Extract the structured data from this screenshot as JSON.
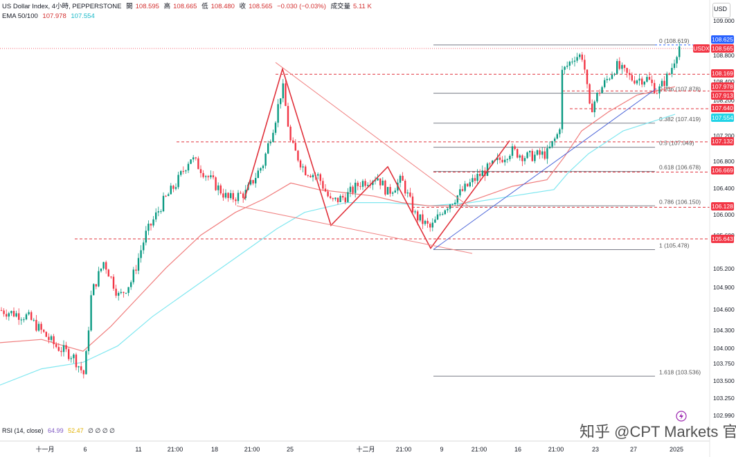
{
  "header": {
    "symbol": "US Dollar Index, 4小時, PEPPERSTONE",
    "open_label": "開",
    "open": "108.595",
    "high_label": "高",
    "high": "108.665",
    "low_label": "低",
    "low": "108.480",
    "close_label": "收",
    "close": "108.565",
    "change": "−0.030 (−0.03%)",
    "volume_label": "成交量",
    "volume": "5.11 K",
    "ema_label": "EMA 50/100",
    "ema50": "107.978",
    "ema100": "107.554"
  },
  "axis": {
    "currency": "USD",
    "y_ticks": [
      "109.000",
      "108.800",
      "108.400",
      "108.200",
      "107.200",
      "106.800",
      "106.400",
      "106.000",
      "105.600",
      "105.200",
      "104.900",
      "104.600",
      "104.300",
      "104.000",
      "103.750",
      "103.500",
      "103.250",
      "102.990"
    ],
    "x_ticks": [
      "十一月",
      "6",
      "11",
      "21:00",
      "18",
      "21:00",
      "25",
      "十二月",
      "21:00",
      "9",
      "21:00",
      "16",
      "21:00",
      "23",
      "27",
      "2025"
    ]
  },
  "price_tags": [
    {
      "value": "108.625",
      "color": "#2962ff"
    },
    {
      "value": "108.565",
      "color": "#f23645",
      "prefix": "USDX"
    },
    {
      "value": "108.169",
      "color": "#f23645"
    },
    {
      "value": "107.978",
      "color": "#f23645"
    },
    {
      "value": "107.913",
      "color": "#f23645"
    },
    {
      "value": "107.640",
      "color": "#f23645"
    },
    {
      "value": "107.554",
      "color": "#22d3e6"
    },
    {
      "value": "107.132",
      "color": "#f23645"
    },
    {
      "value": "106.669",
      "color": "#f23645"
    },
    {
      "value": "106.128",
      "color": "#f23645"
    },
    {
      "value": "105.643",
      "color": "#f23645"
    }
  ],
  "fib_levels": [
    {
      "label": "0 (108.619)",
      "value": 108.619
    },
    {
      "label": "0.236 (107.878)",
      "value": 107.878
    },
    {
      "label": "0.382 (107.419)",
      "value": 107.419
    },
    {
      "label": "0.5 (107.049)",
      "value": 107.049
    },
    {
      "label": "0.618 (106.678)",
      "value": 106.678
    },
    {
      "label": "0.786 (106.150)",
      "value": 106.15
    },
    {
      "label": "1 (105.478)",
      "value": 105.478
    },
    {
      "label": "1.618 (103.536)",
      "value": 103.536
    }
  ],
  "rsi": {
    "label": "RSI (14, close)",
    "value1": "64.99",
    "value2": "52.47",
    "extras": "∅ ∅ ∅ ∅"
  },
  "watermark": "知乎 @CPT Markets 官方",
  "colors": {
    "up": "#089981",
    "down": "#f23645",
    "ema50": "#f07c7c",
    "ema100": "#7fe7f0",
    "pattern": "#e0303a",
    "trend": "#4a64d8"
  },
  "chart_data": {
    "type": "candlestick",
    "title": "US Dollar Index, 4小時, PEPPERSTONE",
    "ylim": [
      102.99,
      109.0
    ],
    "series": [
      {
        "name": "EMA 50",
        "last": 107.978
      },
      {
        "name": "EMA 100",
        "last": 107.554
      }
    ],
    "horizontal_levels": [
      108.169,
      107.913,
      107.64,
      107.132,
      106.669,
      106.128,
      105.643
    ],
    "last_price": 108.565
  }
}
